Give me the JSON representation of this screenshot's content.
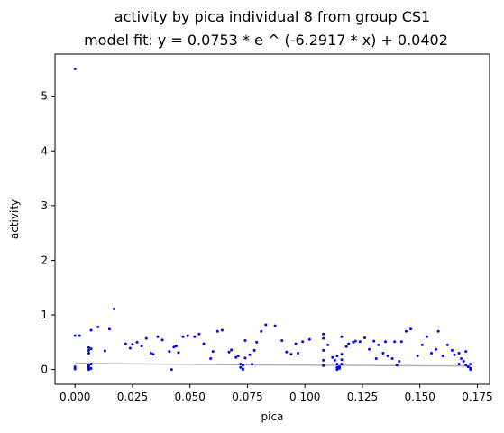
{
  "chart_data": {
    "type": "scatter",
    "title": "activity by pica individual 8 from group CS1",
    "subtitle": "model fit: y = 0.0753 * e ^ (-6.2917 * x) + 0.0402",
    "xlabel": "pica",
    "ylabel": "activity",
    "xlim": [
      -0.0087,
      0.1803
    ],
    "ylim": [
      -0.27,
      5.77
    ],
    "xticks": [
      0.0,
      0.025,
      0.05,
      0.075,
      0.1,
      0.125,
      0.15,
      0.175
    ],
    "xtick_labels": [
      "0.000",
      "0.025",
      "0.050",
      "0.075",
      "0.100",
      "0.125",
      "0.150",
      "0.175"
    ],
    "yticks": [
      0,
      1,
      2,
      3,
      4,
      5
    ],
    "ytick_labels": [
      "0",
      "1",
      "2",
      "3",
      "4",
      "5"
    ],
    "grid": false,
    "points_color": "#0000ff",
    "fit_color": "#b0b0b0",
    "fit": {
      "a": 0.0753,
      "b": -6.2917,
      "c": 0.0402
    },
    "points": [
      [
        0.0,
        5.5
      ],
      [
        0.0,
        0.62
      ],
      [
        0.0,
        0.05
      ],
      [
        0.0,
        0.01
      ],
      [
        0.002,
        0.62
      ],
      [
        0.006,
        0.4
      ],
      [
        0.006,
        0.35
      ],
      [
        0.006,
        0.3
      ],
      [
        0.006,
        0.08
      ],
      [
        0.006,
        0.05
      ],
      [
        0.006,
        0.02
      ],
      [
        0.006,
        0.01
      ],
      [
        0.006,
        0.0
      ],
      [
        0.007,
        0.72
      ],
      [
        0.007,
        0.38
      ],
      [
        0.007,
        0.1
      ],
      [
        0.007,
        0.02
      ],
      [
        0.01,
        0.78
      ],
      [
        0.013,
        0.34
      ],
      [
        0.015,
        0.74
      ],
      [
        0.017,
        1.11
      ],
      [
        0.022,
        0.47
      ],
      [
        0.024,
        0.39
      ],
      [
        0.025,
        0.46
      ],
      [
        0.027,
        0.5
      ],
      [
        0.029,
        0.43
      ],
      [
        0.031,
        0.57
      ],
      [
        0.033,
        0.3
      ],
      [
        0.034,
        0.28
      ],
      [
        0.036,
        0.6
      ],
      [
        0.038,
        0.54
      ],
      [
        0.041,
        0.33
      ],
      [
        0.042,
        0.0
      ],
      [
        0.043,
        0.41
      ],
      [
        0.044,
        0.43
      ],
      [
        0.045,
        0.31
      ],
      [
        0.047,
        0.6
      ],
      [
        0.049,
        0.62
      ],
      [
        0.052,
        0.6
      ],
      [
        0.054,
        0.65
      ],
      [
        0.056,
        0.47
      ],
      [
        0.059,
        0.2
      ],
      [
        0.06,
        0.33
      ],
      [
        0.062,
        0.7
      ],
      [
        0.064,
        0.72
      ],
      [
        0.067,
        0.32
      ],
      [
        0.068,
        0.36
      ],
      [
        0.07,
        0.22
      ],
      [
        0.071,
        0.25
      ],
      [
        0.072,
        0.1
      ],
      [
        0.072,
        0.04
      ],
      [
        0.073,
        0.01
      ],
      [
        0.073,
        0.0
      ],
      [
        0.073,
        0.08
      ],
      [
        0.074,
        0.53
      ],
      [
        0.074,
        0.21
      ],
      [
        0.076,
        0.27
      ],
      [
        0.077,
        0.1
      ],
      [
        0.078,
        0.35
      ],
      [
        0.079,
        0.5
      ],
      [
        0.081,
        0.7
      ],
      [
        0.083,
        0.82
      ],
      [
        0.087,
        0.8
      ],
      [
        0.09,
        0.53
      ],
      [
        0.092,
        0.32
      ],
      [
        0.094,
        0.28
      ],
      [
        0.096,
        0.47
      ],
      [
        0.097,
        0.3
      ],
      [
        0.099,
        0.51
      ],
      [
        0.102,
        0.55
      ],
      [
        0.108,
        0.65
      ],
      [
        0.108,
        0.57
      ],
      [
        0.108,
        0.35
      ],
      [
        0.108,
        0.17
      ],
      [
        0.108,
        0.07
      ],
      [
        0.11,
        0.45
      ],
      [
        0.112,
        0.22
      ],
      [
        0.113,
        0.17
      ],
      [
        0.114,
        0.25
      ],
      [
        0.114,
        0.1
      ],
      [
        0.114,
        0.04
      ],
      [
        0.114,
        0.0
      ],
      [
        0.115,
        0.05
      ],
      [
        0.115,
        0.02
      ],
      [
        0.116,
        0.6
      ],
      [
        0.116,
        0.28
      ],
      [
        0.116,
        0.18
      ],
      [
        0.116,
        0.1
      ],
      [
        0.118,
        0.42
      ],
      [
        0.119,
        0.47
      ],
      [
        0.121,
        0.5
      ],
      [
        0.122,
        0.52
      ],
      [
        0.124,
        0.51
      ],
      [
        0.126,
        0.58
      ],
      [
        0.128,
        0.37
      ],
      [
        0.13,
        0.52
      ],
      [
        0.131,
        0.2
      ],
      [
        0.132,
        0.45
      ],
      [
        0.134,
        0.3
      ],
      [
        0.135,
        0.51
      ],
      [
        0.136,
        0.25
      ],
      [
        0.138,
        0.2
      ],
      [
        0.139,
        0.51
      ],
      [
        0.14,
        0.08
      ],
      [
        0.141,
        0.15
      ],
      [
        0.142,
        0.51
      ],
      [
        0.144,
        0.7
      ],
      [
        0.146,
        0.74
      ],
      [
        0.149,
        0.25
      ],
      [
        0.151,
        0.45
      ],
      [
        0.153,
        0.6
      ],
      [
        0.155,
        0.3
      ],
      [
        0.157,
        0.37
      ],
      [
        0.158,
        0.7
      ],
      [
        0.16,
        0.25
      ],
      [
        0.162,
        0.45
      ],
      [
        0.164,
        0.35
      ],
      [
        0.165,
        0.27
      ],
      [
        0.167,
        0.3
      ],
      [
        0.167,
        0.1
      ],
      [
        0.168,
        0.2
      ],
      [
        0.169,
        0.15
      ],
      [
        0.17,
        0.33
      ],
      [
        0.17,
        0.08
      ],
      [
        0.171,
        0.05
      ],
      [
        0.172,
        0.1
      ],
      [
        0.172,
        0.02
      ],
      [
        0.172,
        0.0
      ]
    ]
  }
}
